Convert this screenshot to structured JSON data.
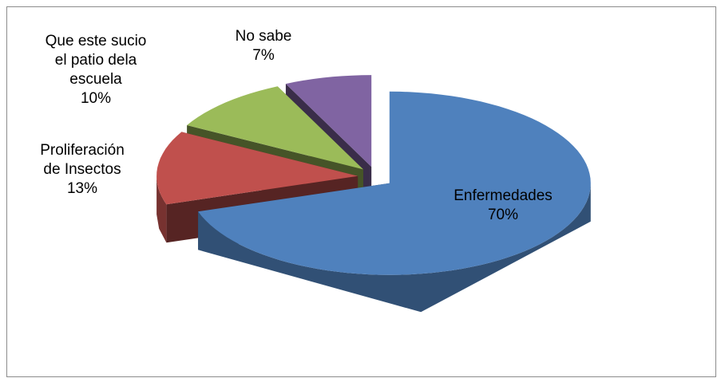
{
  "chart_data": {
    "type": "pie",
    "three_d": true,
    "exploded": true,
    "categories": [
      "Enfermedades",
      "Proliferación de Insectos",
      "Que este sucio el patio dela escuela",
      "No sabe"
    ],
    "values": [
      70,
      13,
      10,
      7
    ],
    "value_labels": [
      "70%",
      "13%",
      "10%",
      "7%"
    ],
    "colors": [
      "#4f81bd",
      "#c0504d",
      "#9bbb59",
      "#8064a2"
    ]
  }
}
